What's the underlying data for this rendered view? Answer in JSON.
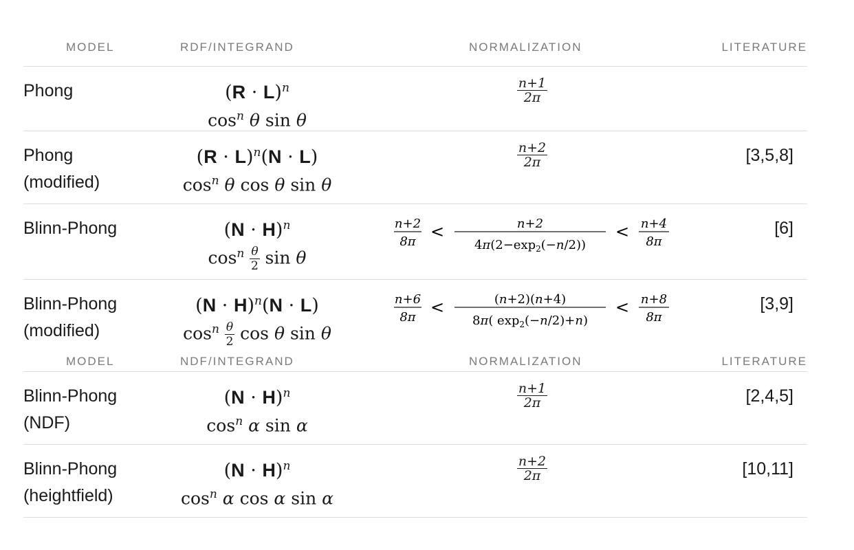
{
  "header1": {
    "model": "MODEL",
    "integrand": "RDF/INTEGRAND",
    "normalization": "NORMALIZATION",
    "literature": "LITERATURE"
  },
  "header2": {
    "model": "MODEL",
    "integrand": "NDF/INTEGRAND",
    "normalization": "NORMALIZATION",
    "literature": "LITERATURE"
  },
  "rows": [
    {
      "model_line1": "Phong",
      "model_line2": "",
      "literature": "",
      "integrand": "(R · L)^n",
      "integrand_expansion": "cos^n θ sin θ",
      "normalization": "(n+1)/(2π)"
    },
    {
      "model_line1": "Phong",
      "model_line2": "(modified)",
      "literature": "[3,5,8]",
      "integrand": "(R · L)^n (N · L)",
      "integrand_expansion": "cos^n θ cos θ sin θ",
      "normalization": "(n+2)/(2π)"
    },
    {
      "model_line1": "Blinn-Phong",
      "model_line2": "",
      "literature": "[6]",
      "integrand": "(N · H)^n",
      "integrand_expansion": "cos^n (θ/2) sin θ",
      "normalization": "(n+2)/(8π) < (n+2)/(4π(2−exp₂(−n/2))) < (n+4)/(8π)"
    },
    {
      "model_line1": "Blinn-Phong",
      "model_line2": "(modified)",
      "literature": "[3,9]",
      "integrand": "(N · H)^n (N · L)",
      "integrand_expansion": "cos^n (θ/2) cos θ sin θ",
      "normalization": "(n+6)/(8π) < (n+2)(n+4)/(8π(exp₂(−n/2)+n)) < (n+8)/(8π)"
    },
    {
      "model_line1": "Blinn-Phong",
      "model_line2": "(NDF)",
      "literature": "[2,4,5]",
      "integrand": "(N · H)^n",
      "integrand_expansion": "cos^n α sin α",
      "normalization": "(n+1)/(2π)"
    },
    {
      "model_line1": "Blinn-Phong",
      "model_line2": "(heightfield)",
      "literature": "[10,11]",
      "integrand": "(N · H)^n",
      "integrand_expansion": "cos^n α cos α sin α",
      "normalization": "(n+2)/(2π)"
    }
  ]
}
